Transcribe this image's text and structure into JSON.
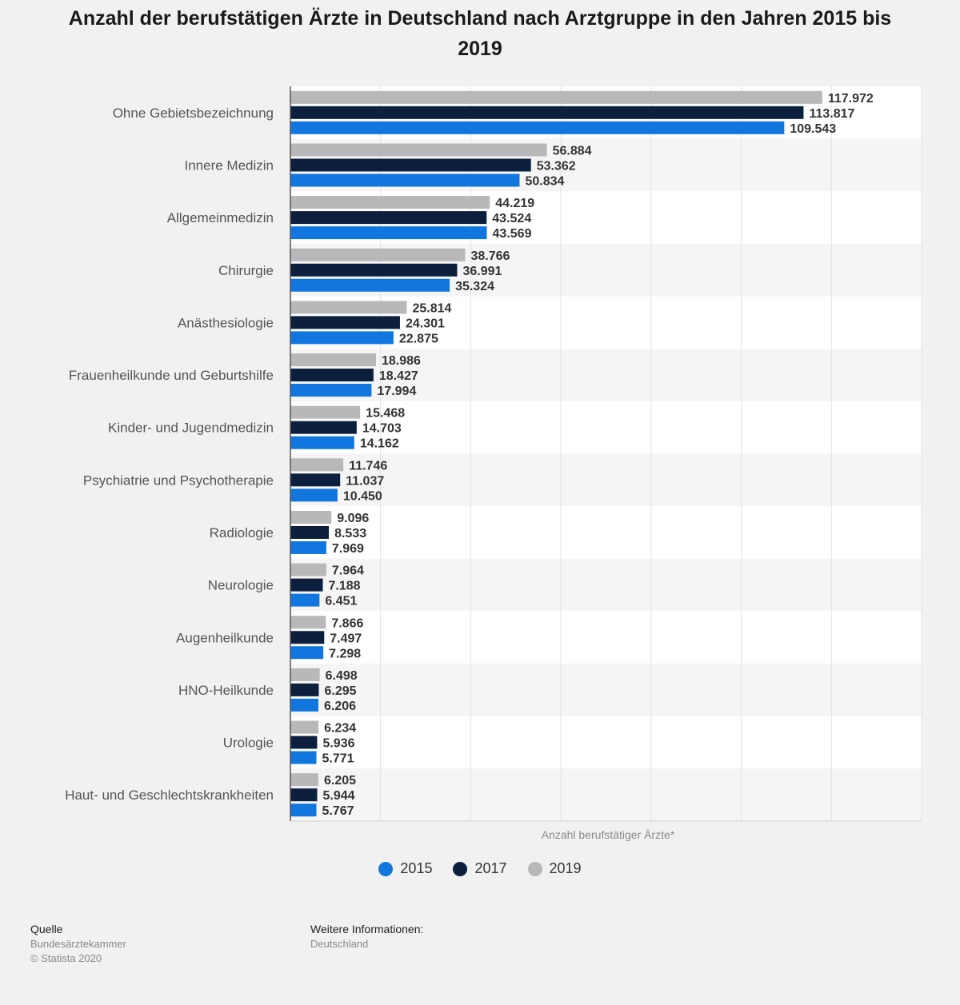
{
  "chart_data": {
    "type": "bar",
    "orientation": "horizontal",
    "title": "Anzahl der berufstätigen Ärzte in Deutschland nach Arztgruppe in den Jahren 2015 bis 2019",
    "xlabel": "Anzahl berufstätiger Ärzte*",
    "ylabel": "",
    "xlim": [
      0,
      140000
    ],
    "grid": true,
    "categories": [
      "Ohne Gebietsbezeichnung",
      "Innere Medizin",
      "Allgemeinmedizin",
      "Chirurgie",
      "Anästhesiologie",
      "Frauenheilkunde und Geburtshilfe",
      "Kinder- und Jugendmedizin",
      "Psychiatrie und Psychotherapie",
      "Radiologie",
      "Neurologie",
      "Augenheilkunde",
      "HNO-Heilkunde",
      "Urologie",
      "Haut- und Geschlechtskrankheiten"
    ],
    "series": [
      {
        "name": "2019",
        "color": "#b8b8b8",
        "values": [
          117972,
          56884,
          44219,
          38766,
          25814,
          18986,
          15468,
          11746,
          9096,
          7964,
          7866,
          6498,
          6234,
          6205
        ],
        "labels": [
          "117.972",
          "56.884",
          "44.219",
          "38.766",
          "25.814",
          "18.986",
          "15.468",
          "11.746",
          "9.096",
          "7.964",
          "7.866",
          "6.498",
          "6.234",
          "6.205"
        ]
      },
      {
        "name": "2017",
        "color": "#0c1f3d",
        "values": [
          113817,
          53362,
          43524,
          36991,
          24301,
          18427,
          14703,
          11037,
          8533,
          7188,
          7497,
          6295,
          5936,
          5944
        ],
        "labels": [
          "113.817",
          "53.362",
          "43.524",
          "36.991",
          "24.301",
          "18.427",
          "14.703",
          "11.037",
          "8.533",
          "7.188",
          "7.497",
          "6.295",
          "5.936",
          "5.944"
        ]
      },
      {
        "name": "2015",
        "color": "#1177de",
        "values": [
          109543,
          50834,
          43569,
          35324,
          22875,
          17994,
          14162,
          10450,
          7969,
          6451,
          7298,
          6206,
          5771,
          5767
        ],
        "labels": [
          "109.543",
          "50.834",
          "43.569",
          "35.324",
          "22.875",
          "17.994",
          "14.162",
          "10.450",
          "7.969",
          "6.451",
          "7.298",
          "6.206",
          "5.771",
          "5.767"
        ]
      }
    ],
    "legend": {
      "position": "bottom",
      "items": [
        {
          "name": "2015",
          "color": "#1177de"
        },
        {
          "name": "2017",
          "color": "#0c1f3d"
        },
        {
          "name": "2019",
          "color": "#b8b8b8"
        }
      ]
    }
  },
  "footer": {
    "source_heading": "Quelle",
    "source_lines": [
      "Bundesärztekammer",
      "© Statista 2020"
    ],
    "info_heading": "Weitere Informationen:",
    "info_lines": [
      "Deutschland"
    ]
  }
}
